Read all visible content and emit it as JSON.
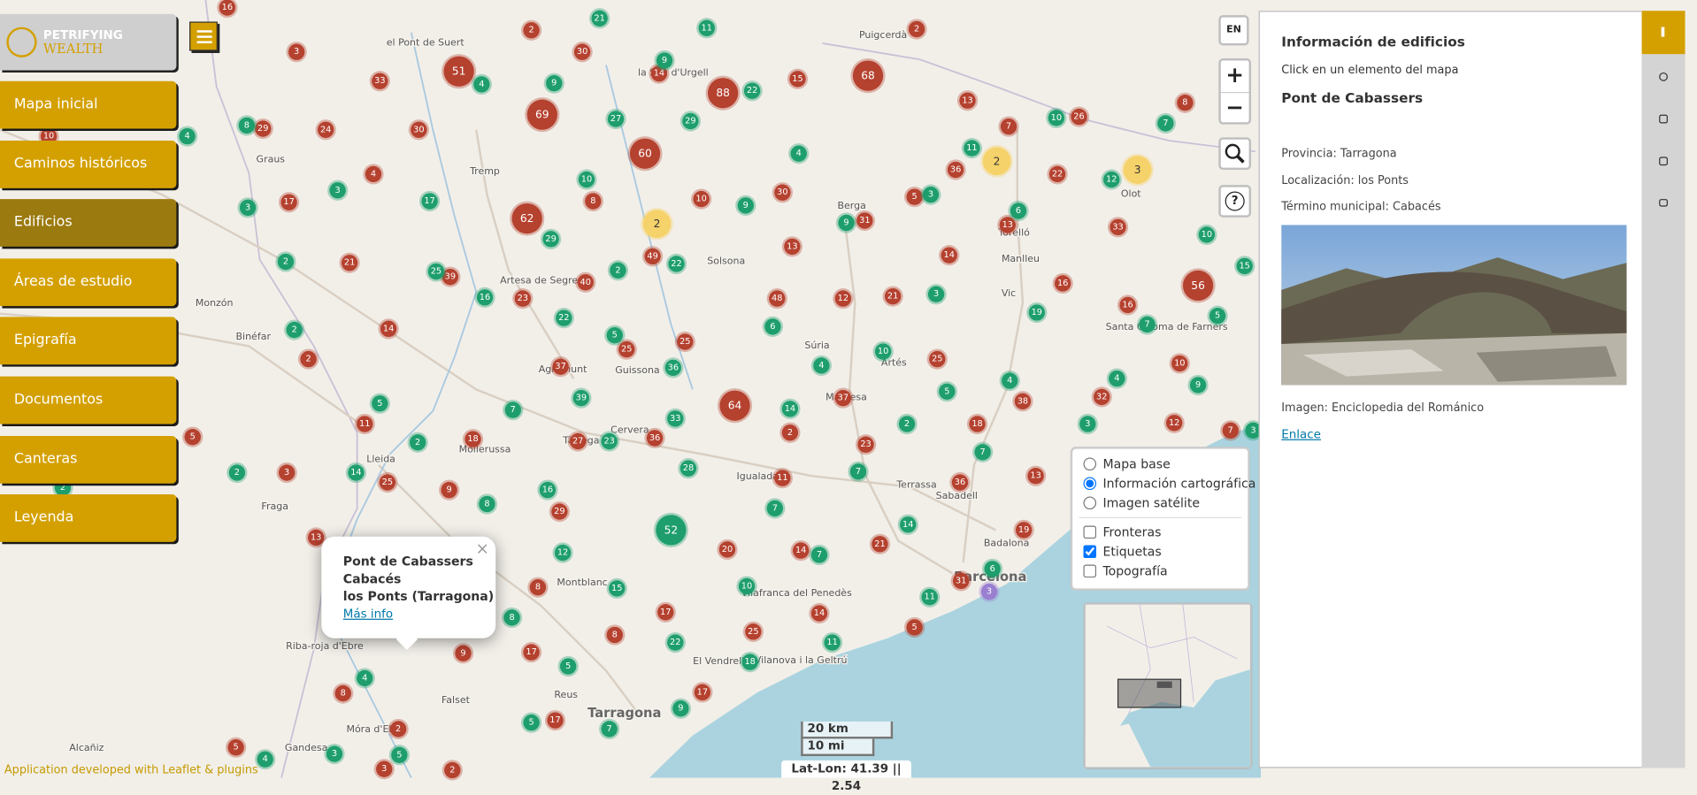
{
  "logo": {
    "line1": "PETRIFYING",
    "line2": "WEALTH"
  },
  "menu": [
    {
      "label": "Mapa inicial",
      "active": false
    },
    {
      "label": "Caminos históricos",
      "active": false
    },
    {
      "label": "Edificios",
      "active": true
    },
    {
      "label": "Áreas de estudio",
      "active": false
    },
    {
      "label": "Epigrafía",
      "active": false
    },
    {
      "label": "Documentos",
      "active": false
    },
    {
      "label": "Canteras",
      "active": false
    },
    {
      "label": "Leyenda",
      "active": false
    }
  ],
  "controls": {
    "lang": "EN",
    "zoom_in": "+",
    "zoom_out": "−",
    "help": "?"
  },
  "layers": {
    "base": [
      {
        "label": "Mapa base",
        "checked": false
      },
      {
        "label": "Información cartográfica",
        "checked": true
      },
      {
        "label": "Imagen satélite",
        "checked": false
      }
    ],
    "overlays": [
      {
        "label": "Fronteras",
        "checked": false
      },
      {
        "label": "Etiquetas",
        "checked": true
      },
      {
        "label": "Topografía",
        "checked": false
      }
    ]
  },
  "popup": {
    "close": "×",
    "lines": [
      "Pont de Cabassers",
      "Cabacés",
      "los Ponts (Tarragona)"
    ],
    "link": "Más info"
  },
  "scale": {
    "metric": "20 km",
    "imperial": "10 mi"
  },
  "coords": "Lat-Lon: 41.39 || 2.54",
  "attribution": "Application developed with Leaflet & plugins",
  "panel": {
    "title": "Información de edificios",
    "hint": "Click en un elemento del mapa",
    "name": "Pont de Cabassers",
    "fields": [
      "Provincia: Tarragona",
      "Localización: los Ponts",
      "Término municipal: Cabacés"
    ],
    "image_credit": "Imagen: Enciclopedia del Románico",
    "link": "Enlace"
  },
  "places": [
    "el Pont de Suert",
    "Puigcerdà",
    "la Seu d'Urgell",
    "Graus",
    "Tremp",
    "Berga",
    "Olot",
    "Torelló",
    "Manlleu",
    "Solsona",
    "Artesa de Segre",
    "Vic",
    "Súria",
    "Artés",
    "Santa Coloma de Farners",
    "Binéfar",
    "Agramunt",
    "Guissona",
    "Manresa",
    "Cervera",
    "Mollerussa",
    "Tàrrega",
    "Lleida",
    "Fraga",
    "Igualada",
    "Terrassa",
    "Sabadell",
    "Badalona",
    "Barcelona",
    "Montblanc",
    "Vilafranca del Penedès",
    "Riba-roja d'Ebre",
    "Falset",
    "Reus",
    "Tarragona",
    "El Vendrell",
    "Vilanova i la Geltrú",
    "Móra d'Ebre",
    "Gandesa",
    "Alcañiz",
    "Monzón"
  ],
  "clusters": {
    "red": {
      "color": "#b5412f",
      "values": [
        51,
        69,
        60,
        62,
        88,
        68,
        64,
        56,
        3,
        33,
        30,
        30,
        29,
        24,
        4,
        17,
        21,
        39,
        23,
        40,
        8,
        49,
        10,
        30,
        13,
        48,
        12,
        21,
        31,
        5,
        36,
        13,
        7,
        26,
        22,
        13,
        14,
        16,
        16,
        8,
        10,
        12,
        32,
        38,
        18,
        25,
        23,
        37,
        2,
        11,
        36,
        25,
        25,
        37,
        27,
        18,
        11,
        14,
        2,
        3,
        5,
        25,
        9,
        29,
        8,
        8,
        17,
        17,
        9,
        8,
        2,
        3,
        5,
        2,
        17,
        17,
        20,
        14,
        14,
        25,
        21,
        5,
        36,
        31,
        13,
        19,
        16,
        2,
        2,
        33,
        13,
        14,
        15,
        7,
        10
      ]
    },
    "green": {
      "color": "#1e9e6d",
      "values": [
        21,
        11,
        4,
        9,
        9,
        22,
        27,
        29,
        4,
        8,
        3,
        3,
        17,
        10,
        9,
        4,
        9,
        3,
        11,
        10,
        7,
        12,
        6,
        10,
        15,
        5,
        7,
        9,
        4,
        19,
        4,
        3,
        5,
        2,
        10,
        4,
        6,
        14,
        36,
        22,
        2,
        29,
        16,
        22,
        5,
        39,
        25,
        7,
        5,
        2,
        23,
        33,
        28,
        14,
        2,
        2,
        2,
        8,
        16,
        12,
        15,
        8,
        5,
        5,
        7,
        9,
        18,
        22,
        10,
        7,
        7,
        7,
        14,
        11,
        7,
        3,
        6,
        4,
        4,
        3,
        5,
        11,
        52,
        2,
        3
      ]
    },
    "yellow": {
      "color": "#f6d26a",
      "values": [
        2,
        2,
        3
      ]
    },
    "purple": {
      "color": "#9a7fd1",
      "values": [
        3
      ]
    }
  }
}
